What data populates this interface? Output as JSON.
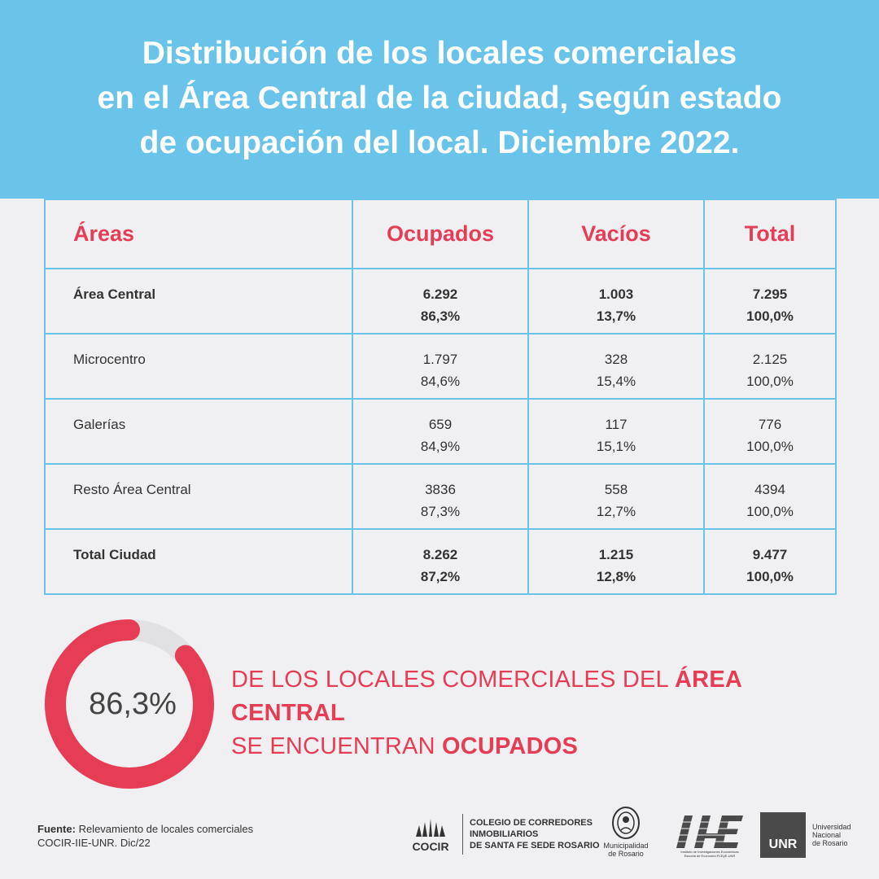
{
  "title": {
    "line1": "Distribución de los locales comerciales",
    "line2": "en el Área Central de la ciudad, según estado",
    "line3": "de ocupación del local. Diciembre 2022."
  },
  "table": {
    "headers": [
      "Áreas",
      "Ocupados",
      "Vacíos",
      "Total"
    ],
    "rows": [
      {
        "area": "Área Central",
        "ocupados": "6.292",
        "ocupados_pct": "86,3%",
        "vacios": "1.003",
        "vacios_pct": "13,7%",
        "total": "7.295",
        "total_pct": "100,0%",
        "bold": true
      },
      {
        "area": "Microcentro",
        "ocupados": "1.797",
        "ocupados_pct": "84,6%",
        "vacios": "328",
        "vacios_pct": "15,4%",
        "total": "2.125",
        "total_pct": "100,0%",
        "bold": false
      },
      {
        "area": "Galerías",
        "ocupados": "659",
        "ocupados_pct": "84,9%",
        "vacios": "117",
        "vacios_pct": "15,1%",
        "total": "776",
        "total_pct": "100,0%",
        "bold": false
      },
      {
        "area": "Resto Área Central",
        "ocupados": "3836",
        "ocupados_pct": "87,3%",
        "vacios": "558",
        "vacios_pct": "12,7%",
        "total": "4394",
        "total_pct": "100,0%",
        "bold": false
      },
      {
        "area": "Total Ciudad",
        "ocupados": "8.262",
        "ocupados_pct": "87,2%",
        "vacios": "1.215",
        "vacios_pct": "12,8%",
        "total": "9.477",
        "total_pct": "100,0%",
        "bold": true
      }
    ]
  },
  "donut": {
    "label": "86,3%",
    "fraction": 0.863,
    "color_filled": "#e63d57",
    "color_empty": "#e1e0e2"
  },
  "headline": {
    "part1": "DE LOS LOCALES COMERCIALES DEL ",
    "emph1": "ÁREA CENTRAL",
    "part2": "SE ENCUENTRAN ",
    "emph2": "OCUPADOS"
  },
  "source": {
    "label": "Fuente:",
    "text1": " Relevamiento de locales comerciales",
    "text2": "COCIR-IIE-UNR. Dic/22"
  },
  "logos": {
    "cocir": {
      "brand": "COCIR",
      "line1": "COLEGIO DE CORREDORES",
      "line2": "INMOBILIARIOS",
      "line3": "DE SANTA FE SEDE ROSARIO"
    },
    "muni": {
      "line1": "Municipalidad",
      "line2": "de Rosario"
    },
    "iie": {
      "line1": "Instituto de Investigaciones Económicas",
      "line2": "Escuela de Economía FCEyE-UNR"
    },
    "unr": {
      "mark": "UNR",
      "line1": "Universidad",
      "line2": "Nacional",
      "line3": "de Rosario"
    }
  },
  "colors": {
    "header_bg": "#6ac3e9",
    "accent": "#e63d57",
    "page_bg": "#f0eff1"
  }
}
